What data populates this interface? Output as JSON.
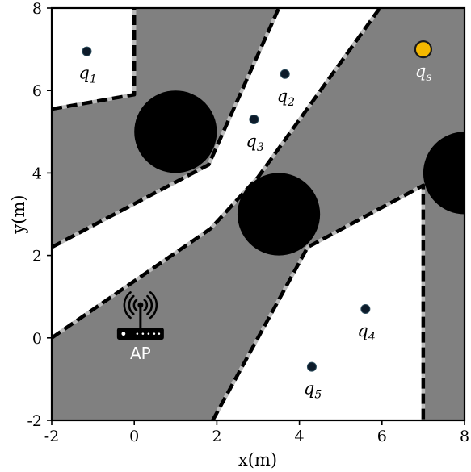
{
  "chart_data": {
    "type": "scatter",
    "xlabel": "x(m)",
    "ylabel": "y(m)",
    "xlim": [
      -2,
      8
    ],
    "ylim": [
      -2,
      8
    ],
    "xticks": [
      "-2",
      "0",
      "2",
      "4",
      "6",
      "8"
    ],
    "yticks": [
      "-2",
      "0",
      "2",
      "4",
      "6",
      "8"
    ],
    "grid": false,
    "colors": {
      "shaded_region": "#808080",
      "free_region": "#ffffff",
      "obstacle": "#000000",
      "boundary_dash": "#000000",
      "boundary_gap": "#bbbbbb",
      "point": "#0d1b2a",
      "start_point": "#f5b800",
      "label_dark": "#000000",
      "label_light": "#ffffff"
    },
    "free_regions": [
      [
        [
          -2,
          5.55
        ],
        [
          -2,
          8
        ],
        [
          0,
          8
        ],
        [
          0,
          5.9
        ]
      ],
      [
        [
          -2,
          2.2
        ],
        [
          -2,
          0
        ],
        [
          1.85,
          2.65
        ],
        [
          3,
          3.9
        ],
        [
          5.95,
          8
        ],
        [
          3.5,
          8
        ],
        [
          1.8,
          4.2
        ]
      ],
      [
        [
          1.9,
          -2
        ],
        [
          4.2,
          2.2
        ],
        [
          7,
          3.7
        ],
        [
          7,
          -2
        ]
      ]
    ],
    "boundaries": [
      [
        [
          -2,
          5.55
        ],
        [
          0,
          5.9
        ],
        [
          0,
          8
        ]
      ],
      [
        [
          -2,
          2.2
        ],
        [
          1.8,
          4.2
        ],
        [
          3.5,
          8
        ]
      ],
      [
        [
          -2,
          0
        ],
        [
          1.85,
          2.65
        ],
        [
          3,
          3.9
        ],
        [
          5.95,
          8
        ]
      ],
      [
        [
          1.9,
          -2
        ],
        [
          4.2,
          2.2
        ],
        [
          7,
          3.7
        ],
        [
          7,
          -2
        ]
      ]
    ],
    "obstacles": [
      {
        "x": 1,
        "y": 5,
        "r": 1
      },
      {
        "x": 3.5,
        "y": 3,
        "r": 1
      },
      {
        "x": 8,
        "y": 4,
        "r": 1
      }
    ],
    "points": [
      {
        "name": "q",
        "sub": "1",
        "x": -1.15,
        "y": 6.95,
        "kind": "waypoint",
        "label_color": "label_dark"
      },
      {
        "name": "q",
        "sub": "2",
        "x": 3.65,
        "y": 6.4,
        "kind": "waypoint",
        "label_color": "label_dark"
      },
      {
        "name": "q",
        "sub": "3",
        "x": 2.9,
        "y": 5.3,
        "kind": "waypoint",
        "label_color": "label_dark"
      },
      {
        "name": "q",
        "sub": "4",
        "x": 5.6,
        "y": 0.7,
        "kind": "waypoint",
        "label_color": "label_dark"
      },
      {
        "name": "q",
        "sub": "5",
        "x": 4.3,
        "y": -0.7,
        "kind": "waypoint",
        "label_color": "label_dark"
      },
      {
        "name": "q",
        "sub": "s",
        "x": 7,
        "y": 7,
        "kind": "start",
        "label_color": "label_light"
      }
    ],
    "access_point": {
      "label": "AP",
      "x": 0.15,
      "y": 0.15,
      "icon": "wifi-router-icon"
    }
  }
}
